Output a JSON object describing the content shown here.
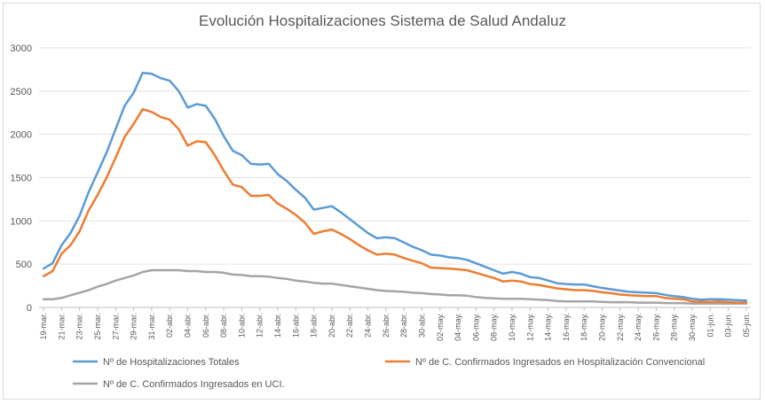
{
  "chart_data": {
    "type": "line",
    "title": "Evolución Hospitalizaciones Sistema de Salud Andaluz",
    "xlabel": "",
    "ylabel": "",
    "ylim": [
      0,
      3000
    ],
    "yticks": [
      0,
      500,
      1000,
      1500,
      2000,
      2500,
      3000
    ],
    "grid": true,
    "legend_position": "bottom",
    "x": [
      "19-mar.",
      "20-mar.",
      "21-mar.",
      "22-mar.",
      "23-mar.",
      "24-mar.",
      "25-mar.",
      "26-mar.",
      "27-mar.",
      "28-mar.",
      "29-mar.",
      "30-mar.",
      "31-mar.",
      "01-abr.",
      "02-abr.",
      "03-abr.",
      "04-abr.",
      "05-abr.",
      "06-abr.",
      "07-abr.",
      "08-abr.",
      "09-abr.",
      "10-abr.",
      "11-abr.",
      "12-abr.",
      "13-abr.",
      "14-abr.",
      "15-abr.",
      "16-abr.",
      "17-abr.",
      "18-abr.",
      "19-abr.",
      "20-abr.",
      "21-abr.",
      "22-abr.",
      "23-abr.",
      "24-abr.",
      "25-abr.",
      "26-abr.",
      "27-abr.",
      "28-abr.",
      "29-abr.",
      "30-abr.",
      "01-may.",
      "02-may.",
      "03-may.",
      "04-may.",
      "05-may.",
      "06-may.",
      "07-may.",
      "08-may.",
      "09-may.",
      "10-may.",
      "11-may.",
      "12-may.",
      "13-may.",
      "14-may.",
      "15-may.",
      "16-may.",
      "17-may.",
      "18-may.",
      "19-may.",
      "20-may.",
      "21-may.",
      "22-may.",
      "23-may.",
      "24-may.",
      "25-may.",
      "26-may.",
      "27-may.",
      "28-may.",
      "29-may.",
      "30-may.",
      "31-may.",
      "01-jun.",
      "02-jun.",
      "03-jun.",
      "04-jun.",
      "05-jun."
    ],
    "xtick_labels": [
      "19-mar.",
      "21-mar.",
      "23-mar.",
      "25-mar.",
      "27-mar.",
      "29-mar.",
      "31-mar.",
      "02-abr.",
      "04-abr.",
      "06-abr.",
      "08-abr.",
      "10-abr.",
      "12-abr.",
      "14-abr.",
      "16-abr.",
      "18-abr.",
      "20-abr.",
      "22-abr.",
      "24-abr.",
      "26-abr.",
      "28-abr.",
      "30-abr.",
      "02-may.",
      "04-may.",
      "06-may.",
      "08-may.",
      "10-may.",
      "12-may.",
      "14-may.",
      "16-may.",
      "18-may.",
      "20-may.",
      "22-may.",
      "24-may.",
      "26-may.",
      "28-may.",
      "30-may.",
      "01-jun.",
      "03-jun.",
      "05-jun."
    ],
    "series": [
      {
        "name": "Nº de Hospitalizaciones Totales",
        "color": "#5b9bd5",
        "values": [
          450,
          510,
          720,
          860,
          1060,
          1330,
          1560,
          1790,
          2060,
          2330,
          2480,
          2710,
          2700,
          2650,
          2620,
          2500,
          2310,
          2350,
          2330,
          2180,
          1980,
          1810,
          1760,
          1660,
          1650,
          1660,
          1540,
          1460,
          1360,
          1270,
          1130,
          1150,
          1170,
          1100,
          1020,
          940,
          860,
          800,
          810,
          800,
          750,
          700,
          660,
          610,
          600,
          580,
          570,
          550,
          510,
          470,
          430,
          390,
          410,
          390,
          350,
          340,
          310,
          280,
          270,
          265,
          265,
          245,
          225,
          210,
          195,
          180,
          175,
          170,
          165,
          145,
          130,
          120,
          100,
          90,
          95,
          95,
          90,
          85,
          80
        ]
      },
      {
        "name": "Nº de C. Confirmados Ingresados en Hospitalización Convencional",
        "color": "#ed7d31",
        "values": [
          360,
          420,
          620,
          720,
          880,
          1120,
          1300,
          1500,
          1730,
          1970,
          2120,
          2290,
          2260,
          2200,
          2170,
          2060,
          1870,
          1920,
          1910,
          1760,
          1580,
          1420,
          1390,
          1290,
          1290,
          1300,
          1200,
          1140,
          1070,
          980,
          850,
          880,
          900,
          850,
          790,
          720,
          660,
          610,
          620,
          610,
          570,
          540,
          510,
          460,
          455,
          450,
          440,
          430,
          400,
          370,
          340,
          300,
          310,
          300,
          270,
          260,
          240,
          220,
          210,
          200,
          200,
          190,
          175,
          165,
          150,
          140,
          135,
          130,
          130,
          110,
          100,
          95,
          70,
          65,
          65,
          70,
          60,
          55,
          55
        ]
      },
      {
        "name": "Nº de C. Confirmados Ingresados en UCI.",
        "color": "#a5a5a5",
        "values": [
          95,
          95,
          110,
          140,
          170,
          200,
          240,
          270,
          310,
          340,
          370,
          410,
          430,
          430,
          430,
          430,
          420,
          420,
          410,
          410,
          400,
          380,
          375,
          360,
          360,
          355,
          340,
          330,
          310,
          300,
          285,
          275,
          275,
          260,
          245,
          230,
          215,
          200,
          190,
          185,
          180,
          170,
          165,
          155,
          150,
          140,
          140,
          135,
          120,
          110,
          105,
          100,
          100,
          100,
          95,
          90,
          85,
          75,
          70,
          70,
          70,
          70,
          65,
          60,
          60,
          60,
          55,
          55,
          55,
          50,
          50,
          50,
          45,
          45,
          45,
          45,
          45,
          45,
          45
        ]
      }
    ]
  }
}
